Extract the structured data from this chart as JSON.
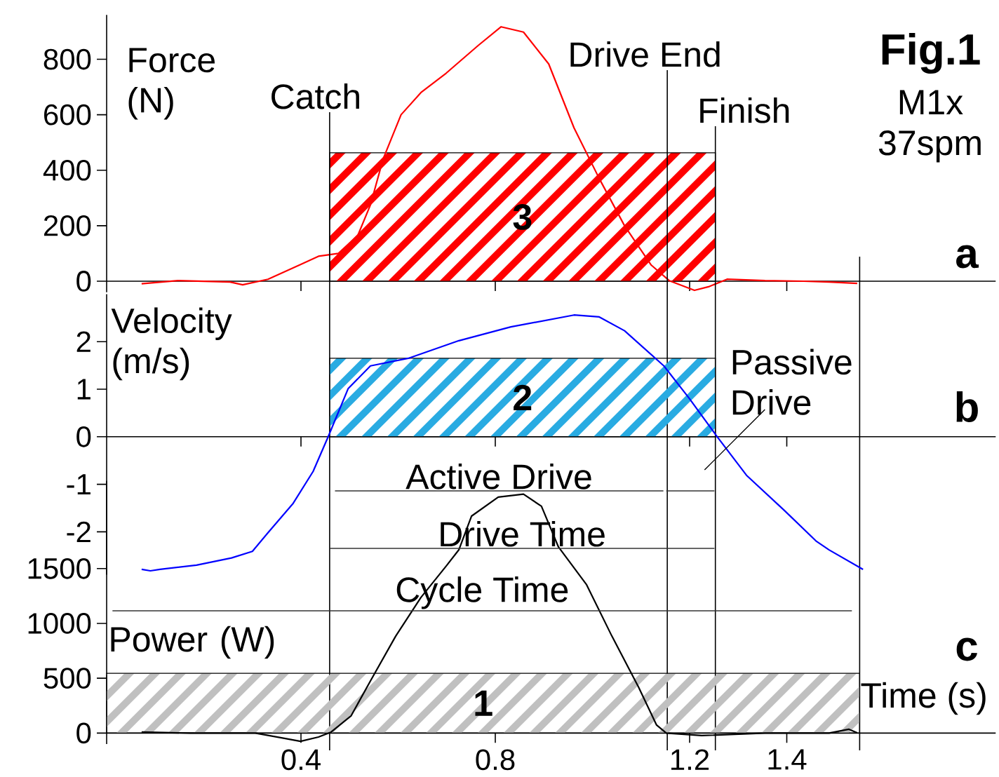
{
  "chart_data": [
    {
      "type": "line",
      "title": "Fig.1",
      "subtitle": "M1x 37spm",
      "ylabel": "Force (N)",
      "xlim": [
        0,
        1.83
      ],
      "xticks": [
        0.4,
        0.8,
        1.2,
        1.4
      ],
      "ylim": [
        -40,
        960
      ],
      "yticks": [
        0,
        200,
        400,
        600,
        800
      ],
      "tick_labels": "y",
      "x": [
        0.072,
        0.147,
        0.254,
        0.28,
        0.332,
        0.399,
        0.436,
        0.477,
        0.517,
        0.543,
        0.569,
        0.606,
        0.647,
        0.699,
        0.765,
        0.812,
        0.858,
        0.91,
        0.962,
        1.014,
        1.066,
        1.121,
        1.158,
        1.21,
        1.239,
        1.277,
        1.355,
        1.435,
        1.487,
        1.545
      ],
      "series": [
        {
          "color": "#ff0000",
          "values": [
            -9,
            2,
            -3,
            -13,
            7,
            60,
            90,
            100,
            165,
            275,
            440,
            600,
            680,
            750,
            850,
            917,
            898,
            783,
            553,
            370,
            200,
            58,
            2,
            -33,
            -20,
            7,
            2,
            0,
            -3,
            -8
          ]
        },
        {
          "type": "area",
          "name": "3",
          "color": "#ff0000",
          "x": [
            0.459,
            1.253
          ],
          "values": [
            463,
            463
          ]
        }
      ],
      "ref_lines": [
        {
          "axis": "x",
          "value": 0.459,
          "label": "Catch"
        },
        {
          "axis": "x",
          "value": 1.154,
          "label": "Drive End"
        },
        {
          "axis": "x",
          "value": 1.253,
          "label": "Finish"
        },
        {
          "axis": "x",
          "value": 1.55
        }
      ],
      "annotations": [
        "a"
      ]
    },
    {
      "type": "line",
      "ylabel": "Velocity (m/s)",
      "xlim": [
        0,
        1.83
      ],
      "xticks": [
        0.4,
        0.8,
        1.2,
        1.4
      ],
      "ylim": [
        -2.9,
        3.0
      ],
      "yticks": [
        -2,
        -1,
        0,
        1,
        2
      ],
      "tick_labels": "y",
      "x": [
        0.072,
        0.09,
        0.11,
        0.185,
        0.257,
        0.3,
        0.332,
        0.384,
        0.425,
        0.456,
        0.497,
        0.543,
        0.621,
        0.725,
        0.832,
        0.962,
        1.014,
        1.066,
        1.147,
        1.199,
        1.256,
        1.317,
        1.395,
        1.461,
        1.487,
        1.557
      ],
      "series": [
        {
          "color": "#0000ff",
          "values": [
            -2.79,
            -2.82,
            -2.79,
            -2.7,
            -2.55,
            -2.41,
            -2.02,
            -1.4,
            -0.73,
            0.0,
            1.01,
            1.49,
            1.65,
            2.02,
            2.31,
            2.56,
            2.52,
            2.23,
            1.49,
            0.81,
            0.01,
            -0.81,
            -1.55,
            -2.2,
            -2.38,
            -2.79
          ]
        },
        {
          "type": "area",
          "name": "2",
          "color": "#29abe2",
          "x": [
            0.459,
            1.253
          ],
          "values": [
            1.65,
            1.65
          ]
        }
      ],
      "annotations": [
        "b"
      ]
    },
    {
      "type": "line",
      "xlabel": "Time (s)",
      "ylabel": "Power (W)",
      "xlim": [
        0,
        1.83
      ],
      "xticks": [
        0.4,
        0.8,
        1.2,
        1.4
      ],
      "ylim": [
        -100,
        2300
      ],
      "yticks": [
        0,
        500,
        1000,
        1500
      ],
      "x": [
        0.072,
        0.173,
        0.306,
        0.358,
        0.399,
        0.436,
        0.462,
        0.503,
        0.543,
        0.595,
        0.647,
        0.699,
        0.725,
        0.751,
        0.806,
        0.858,
        0.895,
        0.93,
        0.988,
        1.04,
        1.095,
        1.132,
        1.152,
        1.225,
        1.355,
        1.487,
        1.528,
        1.545
      ],
      "series": [
        {
          "color": "#000000",
          "values": [
            9,
            0,
            0,
            -42,
            -75,
            -36,
            9,
            156,
            476,
            884,
            1237,
            1523,
            1671,
            1978,
            2151,
            2179,
            2068,
            1697,
            1352,
            884,
            418,
            73,
            0,
            -23,
            0,
            0,
            35,
            3
          ]
        },
        {
          "type": "area",
          "name": "1",
          "color": "#c0c0c0",
          "x": [
            0,
            1.55
          ],
          "values": [
            545,
            545
          ]
        },
        {
          "name": "Active Drive",
          "color": "#333333",
          "x": [
            0.47,
            1.146
          ],
          "values": [
            2208,
            2208
          ]
        },
        {
          "name": "Passive Drive",
          "color": "#333333",
          "x": [
            1.152,
            1.251
          ],
          "values": [
            2208,
            2208
          ]
        },
        {
          "name": "Drive Time",
          "color": "#333333",
          "x": [
            0.459,
            1.251
          ],
          "values": [
            1684,
            1684
          ]
        },
        {
          "name": "Cycle Time",
          "color": "#333333",
          "x": [
            0.012,
            1.534
          ],
          "values": [
            1115,
            1115
          ]
        }
      ],
      "annotations": [
        "c"
      ]
    }
  ]
}
